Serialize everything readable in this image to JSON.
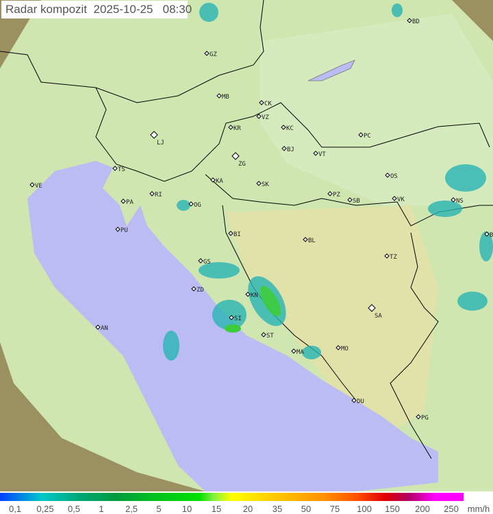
{
  "title": "Radar kompozit  2025-10-25   08:30",
  "legend": {
    "ticks": [
      "0,1",
      "0,25",
      "0,5",
      "1",
      "2,5",
      "5",
      "10",
      "15",
      "20",
      "35",
      "50",
      "75",
      "100",
      "150",
      "200",
      "250"
    ],
    "unit": "mm/h"
  },
  "cities": [
    "BD",
    "GZ",
    "MB",
    "CK",
    "VZ",
    "KR",
    "KC",
    "LJ",
    "ZG",
    "BJ",
    "VT",
    "PC",
    "TS",
    "VE",
    "RI",
    "PA",
    "KA",
    "SK",
    "OS",
    "PZ",
    "SB",
    "VK",
    "NS",
    "OG",
    "PU",
    "BI",
    "BL",
    "BG",
    "GS",
    "ZD",
    "KN",
    "TZ",
    "SI",
    "SA",
    "AN",
    "ST",
    "MA",
    "MO",
    "DU",
    "PG"
  ],
  "colors": {
    "land": "#c9e3a8",
    "sea": "#bcbcf5",
    "outside": "#8a8a5a",
    "border": "#000000",
    "precip_light": "#28b4b4",
    "precip_mod": "#3ccc3c"
  }
}
